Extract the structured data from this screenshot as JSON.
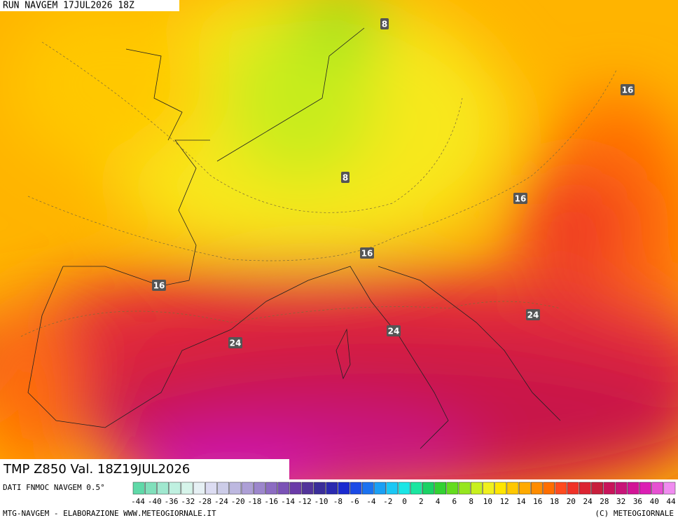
{
  "header": {
    "run": "RUN NAVGEM 17JUL2026 18Z"
  },
  "map": {
    "contour_labels": [
      8,
      16,
      8,
      16,
      16,
      16,
      24,
      24,
      24
    ]
  },
  "caption": {
    "title": "TMP Z850 Val. 18Z19JUL2026"
  },
  "legend": {
    "source": "DATI FNMOC NAVGEM 0.5°",
    "labels": [
      -44,
      -40,
      -36,
      -32,
      -28,
      -24,
      -20,
      -18,
      -16,
      -14,
      -12,
      -10,
      -8,
      -6,
      -4,
      -2,
      0,
      2,
      4,
      6,
      8,
      10,
      12,
      14,
      16,
      18,
      20,
      24,
      28,
      32,
      36,
      40,
      44
    ],
    "colors": [
      "#5fd9a8",
      "#80e0bb",
      "#a0e8cf",
      "#bff0e0",
      "#d6f4ea",
      "#e6f0f4",
      "#dcdcf2",
      "#cccce8",
      "#bdb8e0",
      "#ad9fd6",
      "#9c86cc",
      "#8c6cc2",
      "#7a52b6",
      "#6a3ba8",
      "#52349a",
      "#3a2e9a",
      "#2a2ab0",
      "#1a2ad0",
      "#1a4ae6",
      "#1a72f0",
      "#1aa0f5",
      "#1ac8f5",
      "#1ae6e6",
      "#1ae6a0",
      "#1ad264",
      "#32d232",
      "#64dc1e",
      "#96e61e",
      "#c8f01e",
      "#f0f01e",
      "#ffe600",
      "#ffc800",
      "#ffaa00",
      "#ff8c00",
      "#ff6e00",
      "#ff4b1e",
      "#f03228",
      "#dc2332",
      "#c81e3c",
      "#c8145a",
      "#c81478",
      "#d21496",
      "#dc1eb4",
      "#e650d2",
      "#f08cf0"
    ]
  },
  "footer": {
    "left": "MTG-NAVGEM - ELABORAZIONE WWW.METEOGIORNALE.IT",
    "right": "(C) METEOGIORNALE"
  }
}
